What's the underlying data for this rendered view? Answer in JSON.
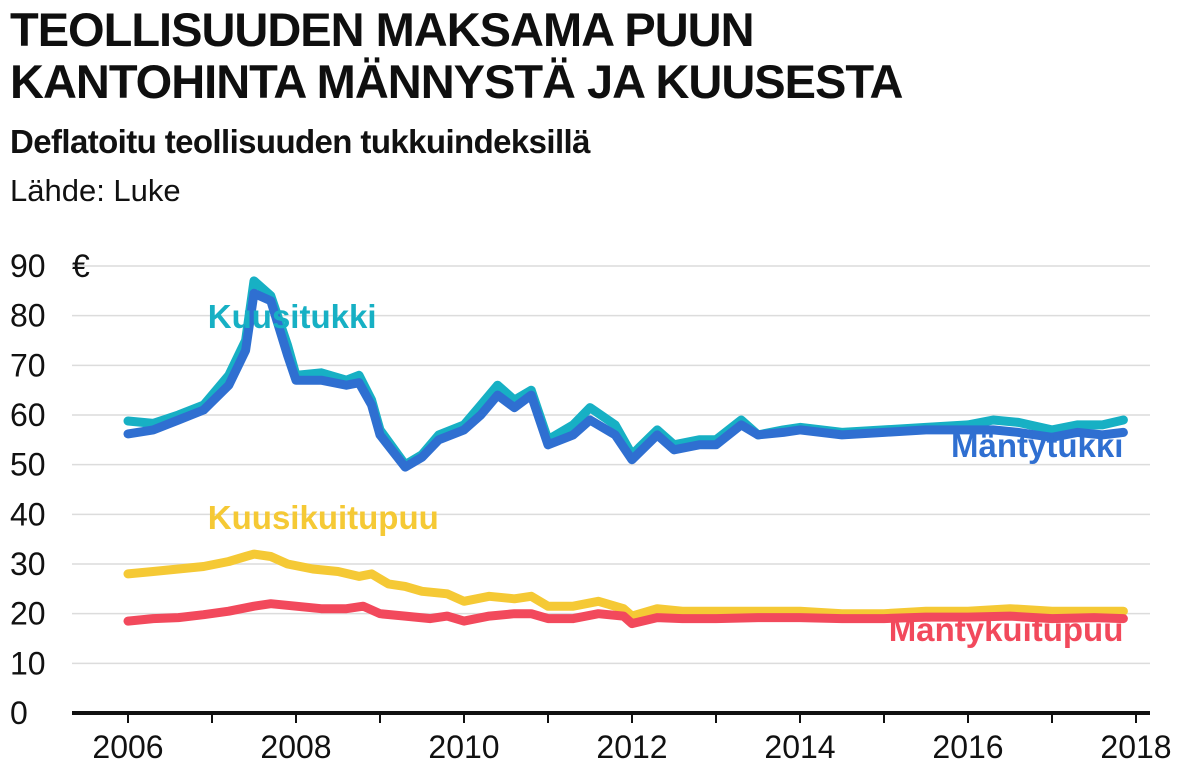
{
  "chart_data": {
    "type": "line",
    "title": [
      "TEOLLISUUDEN MAKSAMA PUUN",
      "KANTOHINTA MÄNNYSTÄ JA KUUSESTA"
    ],
    "subtitle": "Deflatoitu teollisuuden tukkuindeksillä",
    "source": "Lähde: Luke",
    "y_unit": "€",
    "ylim": [
      0,
      90
    ],
    "xlim": [
      2006,
      2018
    ],
    "y_ticks": [
      0,
      10,
      20,
      30,
      40,
      50,
      60,
      70,
      80,
      90
    ],
    "y_tick_labels": [
      "0",
      "10",
      "20",
      "30",
      "40",
      "50",
      "60",
      "70",
      "80",
      "90"
    ],
    "x_ticks": [
      2006,
      2008,
      2010,
      2012,
      2014,
      2016,
      2018
    ],
    "x_tick_labels": [
      "2006",
      "2008",
      "2010",
      "2012",
      "2014",
      "2016",
      "2018"
    ],
    "grid": true,
    "series": [
      {
        "name": "Kuusitukki",
        "color": "#17b0c4",
        "points": [
          [
            2006.0,
            58.8
          ],
          [
            2006.3,
            58.3
          ],
          [
            2006.6,
            60.0
          ],
          [
            2006.9,
            62.0
          ],
          [
            2007.2,
            68.0
          ],
          [
            2007.4,
            75.0
          ],
          [
            2007.5,
            87.0
          ],
          [
            2007.7,
            84.0
          ],
          [
            2007.9,
            74.0
          ],
          [
            2008.0,
            68.0
          ],
          [
            2008.3,
            68.5
          ],
          [
            2008.6,
            67.0
          ],
          [
            2008.75,
            68.0
          ],
          [
            2008.9,
            63.0
          ],
          [
            2009.0,
            57.0
          ],
          [
            2009.3,
            50.0
          ],
          [
            2009.5,
            52.0
          ],
          [
            2009.7,
            56.0
          ],
          [
            2010.0,
            58.0
          ],
          [
            2010.2,
            62.0
          ],
          [
            2010.4,
            66.0
          ],
          [
            2010.6,
            63.0
          ],
          [
            2010.8,
            65.0
          ],
          [
            2011.0,
            55.0
          ],
          [
            2011.3,
            58.0
          ],
          [
            2011.5,
            61.5
          ],
          [
            2011.8,
            58.0
          ],
          [
            2012.0,
            52.0
          ],
          [
            2012.3,
            57.0
          ],
          [
            2012.5,
            54.0
          ],
          [
            2012.8,
            55.0
          ],
          [
            2013.0,
            55.0
          ],
          [
            2013.3,
            59.0
          ],
          [
            2013.5,
            56.0
          ],
          [
            2013.8,
            57.0
          ],
          [
            2014.0,
            57.5
          ],
          [
            2014.5,
            56.5
          ],
          [
            2015.0,
            57.0
          ],
          [
            2015.5,
            57.5
          ],
          [
            2016.0,
            58.0
          ],
          [
            2016.3,
            59.0
          ],
          [
            2016.6,
            58.5
          ],
          [
            2017.0,
            57.0
          ],
          [
            2017.3,
            58.0
          ],
          [
            2017.6,
            58.0
          ],
          [
            2017.85,
            59.0
          ]
        ]
      },
      {
        "name": "Mäntytukki",
        "color": "#2f6fd1",
        "points": [
          [
            2006.0,
            56.2
          ],
          [
            2006.3,
            57.0
          ],
          [
            2006.6,
            59.0
          ],
          [
            2006.9,
            61.0
          ],
          [
            2007.2,
            66.0
          ],
          [
            2007.4,
            73.0
          ],
          [
            2007.5,
            84.5
          ],
          [
            2007.7,
            83.0
          ],
          [
            2007.9,
            72.0
          ],
          [
            2008.0,
            67.0
          ],
          [
            2008.3,
            67.0
          ],
          [
            2008.6,
            66.0
          ],
          [
            2008.75,
            66.5
          ],
          [
            2008.9,
            62.0
          ],
          [
            2009.0,
            56.0
          ],
          [
            2009.3,
            49.5
          ],
          [
            2009.5,
            51.5
          ],
          [
            2009.7,
            55.0
          ],
          [
            2010.0,
            57.0
          ],
          [
            2010.2,
            60.0
          ],
          [
            2010.4,
            64.0
          ],
          [
            2010.6,
            61.5
          ],
          [
            2010.8,
            64.0
          ],
          [
            2011.0,
            54.0
          ],
          [
            2011.3,
            56.0
          ],
          [
            2011.5,
            59.0
          ],
          [
            2011.8,
            56.0
          ],
          [
            2012.0,
            51.0
          ],
          [
            2012.3,
            56.0
          ],
          [
            2012.5,
            53.0
          ],
          [
            2012.8,
            54.0
          ],
          [
            2013.0,
            54.0
          ],
          [
            2013.3,
            58.0
          ],
          [
            2013.5,
            56.0
          ],
          [
            2013.8,
            56.5
          ],
          [
            2014.0,
            57.0
          ],
          [
            2014.5,
            56.0
          ],
          [
            2015.0,
            56.5
          ],
          [
            2015.5,
            57.0
          ],
          [
            2016.0,
            57.0
          ],
          [
            2016.3,
            57.0
          ],
          [
            2016.6,
            56.5
          ],
          [
            2017.0,
            55.5
          ],
          [
            2017.3,
            56.5
          ],
          [
            2017.6,
            56.0
          ],
          [
            2017.85,
            56.5
          ]
        ]
      },
      {
        "name": "Kuusikuitupuu",
        "color": "#f5c935",
        "points": [
          [
            2006.0,
            28.0
          ],
          [
            2006.3,
            28.5
          ],
          [
            2006.6,
            29.0
          ],
          [
            2006.9,
            29.5
          ],
          [
            2007.2,
            30.5
          ],
          [
            2007.4,
            31.5
          ],
          [
            2007.5,
            32.0
          ],
          [
            2007.7,
            31.5
          ],
          [
            2007.9,
            30.0
          ],
          [
            2008.2,
            29.0
          ],
          [
            2008.5,
            28.5
          ],
          [
            2008.75,
            27.5
          ],
          [
            2008.9,
            28.0
          ],
          [
            2009.1,
            26.0
          ],
          [
            2009.3,
            25.5
          ],
          [
            2009.5,
            24.5
          ],
          [
            2009.8,
            24.0
          ],
          [
            2010.0,
            22.5
          ],
          [
            2010.3,
            23.5
          ],
          [
            2010.6,
            23.0
          ],
          [
            2010.8,
            23.5
          ],
          [
            2011.0,
            21.5
          ],
          [
            2011.3,
            21.5
          ],
          [
            2011.6,
            22.5
          ],
          [
            2011.9,
            21.0
          ],
          [
            2012.0,
            19.5
          ],
          [
            2012.3,
            21.0
          ],
          [
            2012.6,
            20.5
          ],
          [
            2013.0,
            20.5
          ],
          [
            2013.5,
            20.5
          ],
          [
            2014.0,
            20.5
          ],
          [
            2014.5,
            20.0
          ],
          [
            2015.0,
            20.0
          ],
          [
            2015.5,
            20.5
          ],
          [
            2016.0,
            20.5
          ],
          [
            2016.5,
            21.0
          ],
          [
            2017.0,
            20.5
          ],
          [
            2017.5,
            20.5
          ],
          [
            2017.85,
            20.5
          ]
        ]
      },
      {
        "name": "Mäntykuitupuu",
        "color": "#f2495c",
        "points": [
          [
            2006.0,
            18.5
          ],
          [
            2006.3,
            19.0
          ],
          [
            2006.6,
            19.2
          ],
          [
            2006.9,
            19.8
          ],
          [
            2007.2,
            20.5
          ],
          [
            2007.5,
            21.5
          ],
          [
            2007.7,
            22.0
          ],
          [
            2008.0,
            21.5
          ],
          [
            2008.3,
            21.0
          ],
          [
            2008.6,
            21.0
          ],
          [
            2008.8,
            21.5
          ],
          [
            2009.0,
            20.0
          ],
          [
            2009.3,
            19.5
          ],
          [
            2009.6,
            19.0
          ],
          [
            2009.8,
            19.5
          ],
          [
            2010.0,
            18.5
          ],
          [
            2010.3,
            19.5
          ],
          [
            2010.6,
            20.0
          ],
          [
            2010.8,
            20.0
          ],
          [
            2011.0,
            19.0
          ],
          [
            2011.3,
            19.0
          ],
          [
            2011.6,
            20.0
          ],
          [
            2011.9,
            19.5
          ],
          [
            2012.0,
            18.0
          ],
          [
            2012.3,
            19.2
          ],
          [
            2012.6,
            19.0
          ],
          [
            2013.0,
            19.0
          ],
          [
            2013.5,
            19.2
          ],
          [
            2014.0,
            19.2
          ],
          [
            2014.5,
            19.0
          ],
          [
            2015.0,
            19.0
          ],
          [
            2015.5,
            19.3
          ],
          [
            2016.0,
            19.3
          ],
          [
            2016.5,
            19.5
          ],
          [
            2017.0,
            19.0
          ],
          [
            2017.5,
            19.2
          ],
          [
            2017.85,
            19.0
          ]
        ]
      }
    ]
  }
}
